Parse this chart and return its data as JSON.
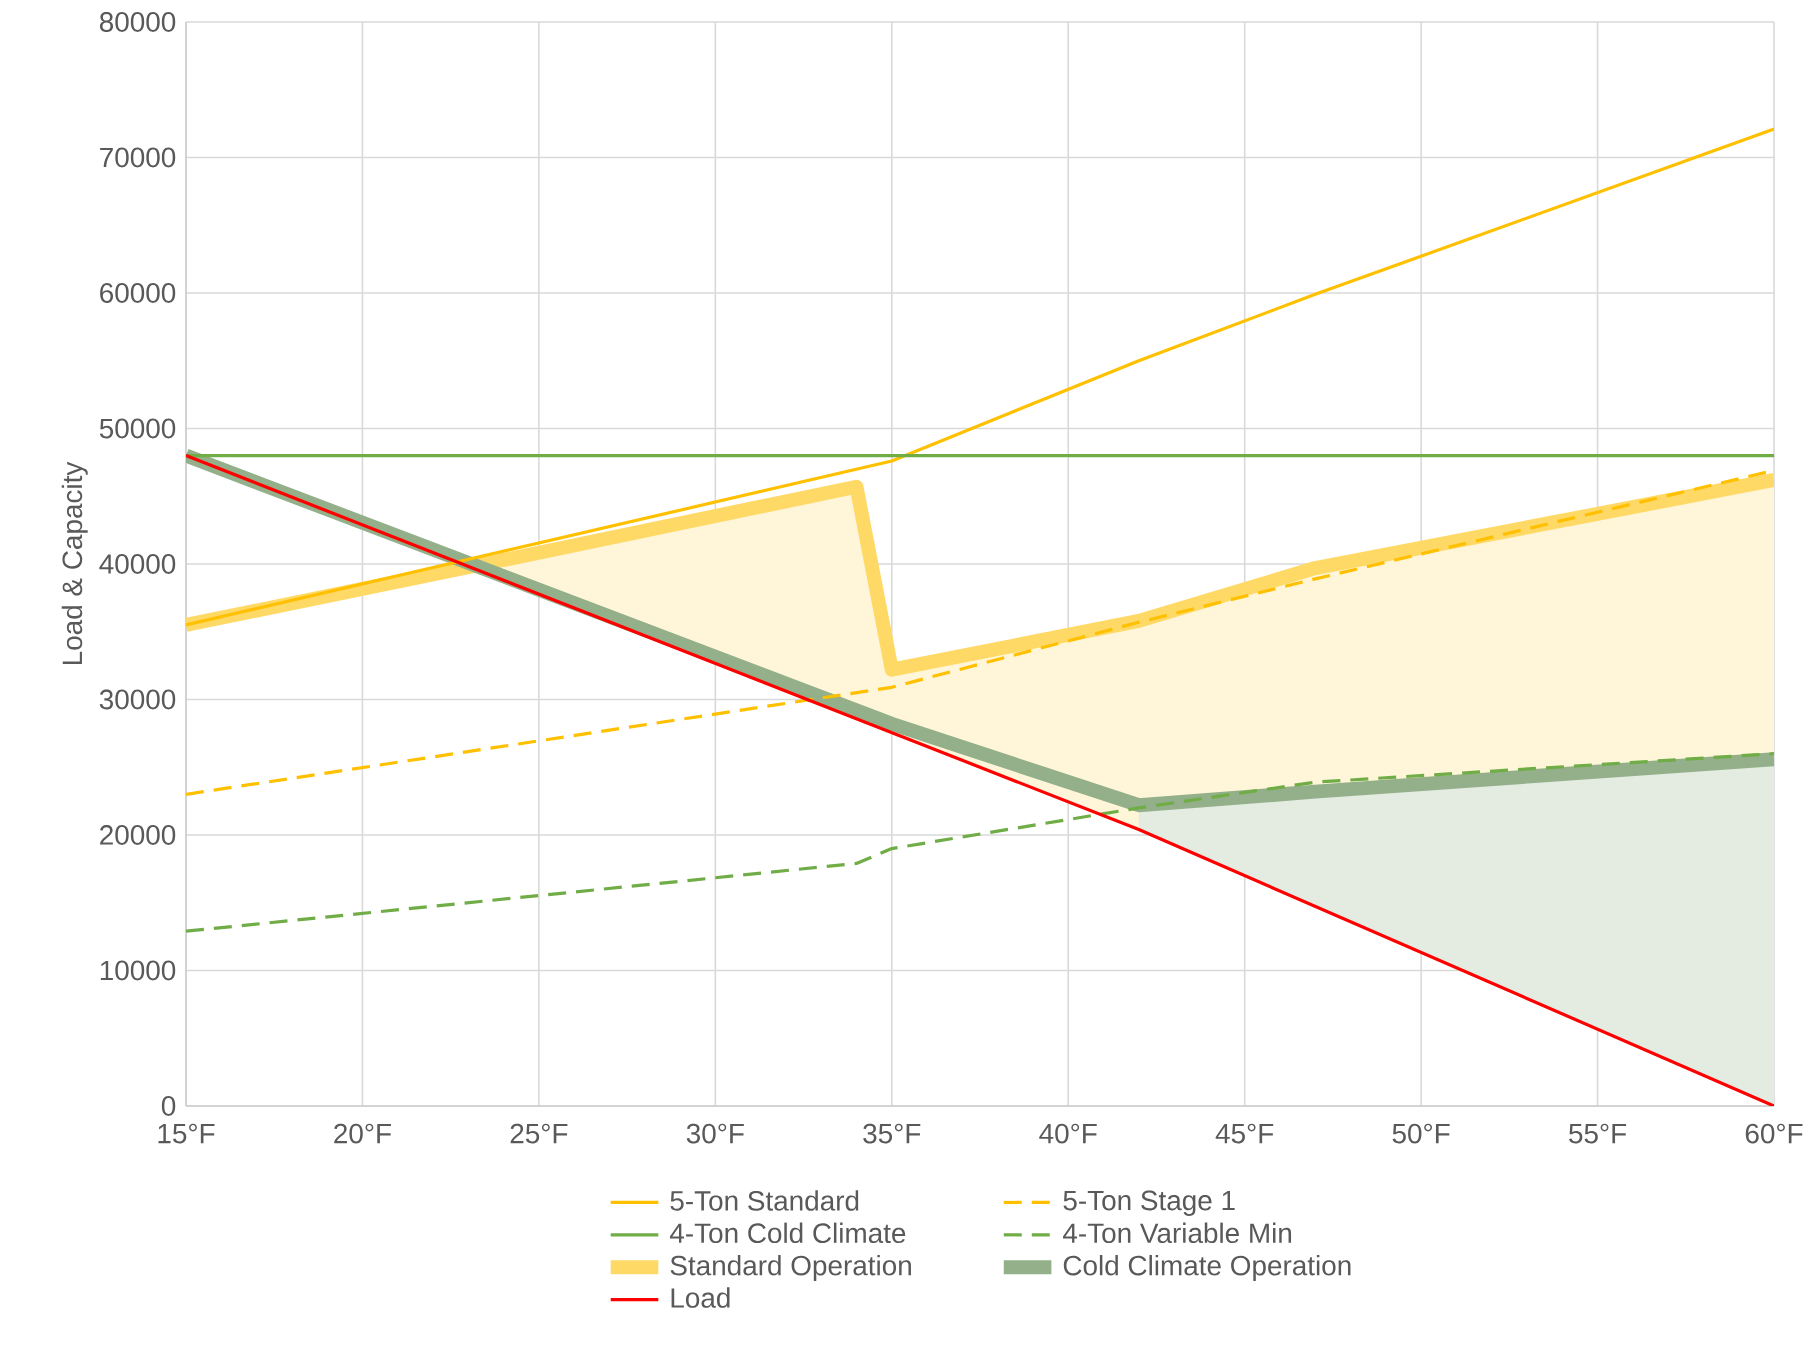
{
  "chart_data": {
    "type": "line",
    "ylabel": "Load & Capacity",
    "xlim": [
      15,
      60
    ],
    "ylim": [
      0,
      80000
    ],
    "xticks": [
      {
        "value": 15,
        "label": "15°F"
      },
      {
        "value": 20,
        "label": "20°F"
      },
      {
        "value": 25,
        "label": "25°F"
      },
      {
        "value": 30,
        "label": "30°F"
      },
      {
        "value": 35,
        "label": "35°F"
      },
      {
        "value": 40,
        "label": "40°F"
      },
      {
        "value": 45,
        "label": "45°F"
      },
      {
        "value": 50,
        "label": "50°F"
      },
      {
        "value": 55,
        "label": "55°F"
      },
      {
        "value": 60,
        "label": "60°F"
      }
    ],
    "yticks": [
      0,
      10000,
      20000,
      30000,
      40000,
      50000,
      60000,
      70000,
      80000
    ],
    "grid": true,
    "legend": "bottom",
    "series": [
      {
        "name": "5-Ton Standard",
        "color": "#ffc000",
        "line_style": "solid",
        "x": [
          15,
          35,
          42,
          47,
          60
        ],
        "values": [
          35500,
          47600,
          55000,
          59900,
          72100
        ]
      },
      {
        "name": "5-Ton Stage 1",
        "color": "#ffc000",
        "line_style": "dashed",
        "x": [
          15,
          35,
          42,
          47,
          60
        ],
        "values": [
          23000,
          30900,
          35700,
          38900,
          46900
        ]
      },
      {
        "name": "4-Ton Cold Climate",
        "color": "#70ad47",
        "line_style": "solid",
        "x": [
          15,
          60
        ],
        "values": [
          48000,
          48000
        ]
      },
      {
        "name": "4-Ton Variable Min",
        "color": "#70ad47",
        "line_style": "dashed",
        "x": [
          15,
          34,
          35,
          42,
          47,
          60
        ],
        "values": [
          12900,
          17900,
          19000,
          22000,
          23900,
          26000
        ]
      },
      {
        "name": "Standard Operation",
        "color": "#ffd966",
        "line_style": "solid",
        "x": [
          15,
          24,
          34,
          35,
          42,
          47,
          60
        ],
        "values": [
          35500,
          40300,
          45700,
          32200,
          35800,
          39700,
          46200
        ],
        "lower": [
          null,
          38800,
          28600,
          27600,
          20400,
          14700,
          0
        ],
        "upper": [
          null,
          40300,
          45700,
          32200,
          35800,
          39700,
          46200
        ]
      },
      {
        "name": "Cold Climate Operation",
        "color": "#93b08a",
        "line_style": "solid",
        "x": [
          15,
          35,
          42,
          47,
          60
        ],
        "values": [
          48000,
          28200,
          22200,
          23200,
          25600
        ],
        "lower": [
          null,
          null,
          20400,
          14700,
          0
        ],
        "upper": [
          null,
          null,
          22200,
          23200,
          25600
        ]
      },
      {
        "name": "Load",
        "color": "#ff0000",
        "line_style": "solid",
        "x": [
          15,
          42,
          60
        ],
        "values": [
          48000,
          20400,
          0
        ]
      }
    ]
  }
}
